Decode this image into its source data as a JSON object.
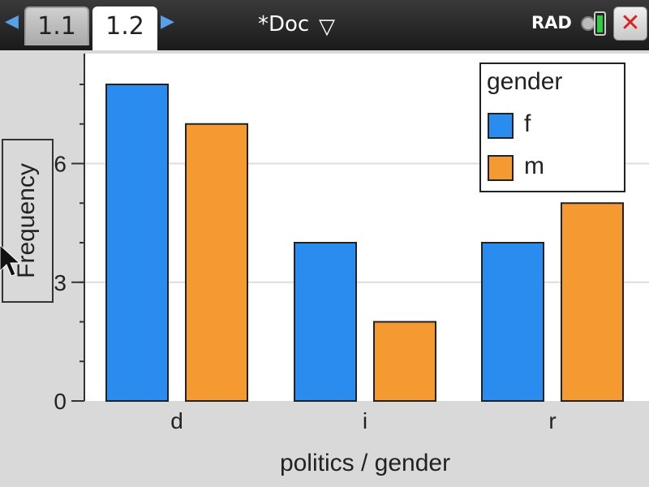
{
  "topbar": {
    "tabs": [
      {
        "label": "1.1",
        "active": false
      },
      {
        "label": "1.2",
        "active": true
      }
    ],
    "doc_title": "*Doc",
    "angle_mode": "RAD",
    "left_arrow_icon": "left-arrow-icon",
    "right_arrow_icon": "right-arrow-icon",
    "dropdown_icon": "chevron-down-icon",
    "battery_icon": "battery-icon",
    "close_icon": "close-icon"
  },
  "colors": {
    "f": "#2b8cf0",
    "m": "#f59a30",
    "plot_bg": "#ffffff",
    "frame_bg": "#d9d9d9"
  },
  "chart_data": {
    "type": "bar",
    "categories": [
      "d",
      "i",
      "r"
    ],
    "series": [
      {
        "name": "f",
        "values": [
          8,
          4,
          4
        ]
      },
      {
        "name": "m",
        "values": [
          7,
          2,
          5
        ]
      }
    ],
    "xlabel": "politics / gender",
    "ylabel": "Frequency",
    "yticks": [
      0,
      3,
      6
    ],
    "ylim": [
      0,
      9
    ],
    "legend_title": "gender",
    "legend_position": "top-right",
    "grid": true
  }
}
